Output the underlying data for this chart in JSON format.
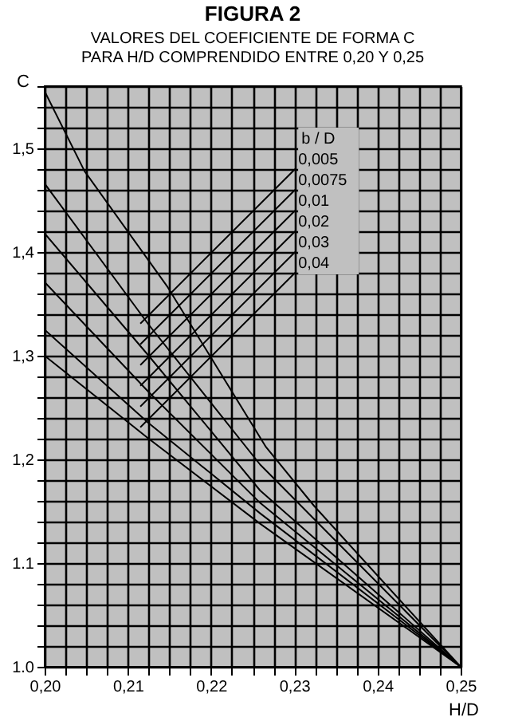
{
  "chart_data": {
    "type": "line",
    "title": "FIGURA 2",
    "subtitle": "VALORES DEL COEFICIENTE DE FORMA  C\nPARA H/D COMPRENDIDO ENTRE 0,20 Y 0,25",
    "xlabel": "H/D",
    "ylabel": "C",
    "line_style": "solid",
    "grid": true,
    "annotations": [
      "b / D"
    ],
    "xlim": [
      0.2,
      0.25
    ],
    "ylim": [
      1.0,
      1.56
    ],
    "xticks": [
      {
        "value": 0.2,
        "label": "0,20"
      },
      {
        "value": 0.2025,
        "label": null
      },
      {
        "value": 0.205,
        "label": null
      },
      {
        "value": 0.2075,
        "label": null
      },
      {
        "value": 0.21,
        "label": "0,21"
      },
      {
        "value": 0.2125,
        "label": null
      },
      {
        "value": 0.215,
        "label": null
      },
      {
        "value": 0.2175,
        "label": null
      },
      {
        "value": 0.22,
        "label": "0,22"
      },
      {
        "value": 0.2225,
        "label": null
      },
      {
        "value": 0.225,
        "label": null
      },
      {
        "value": 0.2275,
        "label": null
      },
      {
        "value": 0.23,
        "label": "0,23"
      },
      {
        "value": 0.2325,
        "label": null
      },
      {
        "value": 0.235,
        "label": null
      },
      {
        "value": 0.2375,
        "label": null
      },
      {
        "value": 0.24,
        "label": "0,24"
      },
      {
        "value": 0.2425,
        "label": null
      },
      {
        "value": 0.245,
        "label": null
      },
      {
        "value": 0.2475,
        "label": null
      },
      {
        "value": 0.25,
        "label": "0,25"
      }
    ],
    "yticks": [
      {
        "value": 1.0,
        "label": "1.0"
      },
      {
        "value": 1.02,
        "label": null
      },
      {
        "value": 1.04,
        "label": null
      },
      {
        "value": 1.06,
        "label": null
      },
      {
        "value": 1.08,
        "label": null
      },
      {
        "value": 1.1,
        "label": "1.1"
      },
      {
        "value": 1.12,
        "label": null
      },
      {
        "value": 1.14,
        "label": null
      },
      {
        "value": 1.16,
        "label": null
      },
      {
        "value": 1.18,
        "label": null
      },
      {
        "value": 1.2,
        "label": "1,2"
      },
      {
        "value": 1.22,
        "label": null
      },
      {
        "value": 1.24,
        "label": null
      },
      {
        "value": 1.26,
        "label": null
      },
      {
        "value": 1.28,
        "label": null
      },
      {
        "value": 1.3,
        "label": "1,3"
      },
      {
        "value": 1.32,
        "label": null
      },
      {
        "value": 1.34,
        "label": null
      },
      {
        "value": 1.36,
        "label": null
      },
      {
        "value": 1.38,
        "label": null
      },
      {
        "value": 1.4,
        "label": "1,4"
      },
      {
        "value": 1.42,
        "label": null
      },
      {
        "value": 1.44,
        "label": null
      },
      {
        "value": 1.46,
        "label": null
      },
      {
        "value": 1.48,
        "label": null
      },
      {
        "value": 1.5,
        "label": "1,5"
      },
      {
        "value": 1.52,
        "label": null
      },
      {
        "value": 1.54,
        "label": null
      },
      {
        "value": 1.56,
        "label": null
      }
    ],
    "series": [
      {
        "color": "#000000",
        "x": [
          0.2,
          0.2048,
          0.2148,
          0.2266,
          0.2324,
          0.25
        ],
        "values": [
          1.555,
          1.478,
          1.366,
          1.212,
          1.155,
          1.0
        ]
      },
      {
        "color": "#000000",
        "x": [
          0.2,
          0.2125,
          0.2259,
          0.25
        ],
        "values": [
          1.466,
          1.33,
          1.195,
          1.0
        ]
      },
      {
        "color": "#000000",
        "x": [
          0.2,
          0.2125,
          0.2259,
          0.25
        ],
        "values": [
          1.418,
          1.3,
          1.17,
          1.0
        ]
      },
      {
        "color": "#000000",
        "x": [
          0.2,
          0.2125,
          0.2259,
          0.25
        ],
        "values": [
          1.371,
          1.265,
          1.158,
          1.0
        ]
      },
      {
        "color": "#000000",
        "x": [
          0.2,
          0.2125,
          0.2259,
          0.25
        ],
        "values": [
          1.325,
          1.235,
          1.148,
          1.0
        ]
      },
      {
        "color": "#000000",
        "x": [
          0.2,
          0.2125,
          0.2259,
          0.25
        ],
        "values": [
          1.3,
          1.22,
          1.138,
          1.0
        ]
      },
      {
        "name": "0,005",
        "color": "#000000",
        "x": [
          0.2115,
          0.2301
        ],
        "values": [
          1.331,
          1.48
        ]
      },
      {
        "name": "0,0075",
        "color": "#000000",
        "x": [
          0.2115,
          0.2301
        ],
        "values": [
          1.311,
          1.46
        ]
      },
      {
        "name": "0,01",
        "color": "#000000",
        "x": [
          0.2115,
          0.2301
        ],
        "values": [
          1.291,
          1.44
        ]
      },
      {
        "name": "0,02",
        "color": "#000000",
        "x": [
          0.2115,
          0.2301
        ],
        "values": [
          1.271,
          1.42
        ]
      },
      {
        "name": "0,03",
        "color": "#000000",
        "x": [
          0.2115,
          0.2301
        ],
        "values": [
          1.251,
          1.4
        ]
      },
      {
        "name": "0,04",
        "color": "#000000",
        "x": [
          0.2115,
          0.2301
        ],
        "values": [
          1.231,
          1.38
        ]
      }
    ]
  }
}
